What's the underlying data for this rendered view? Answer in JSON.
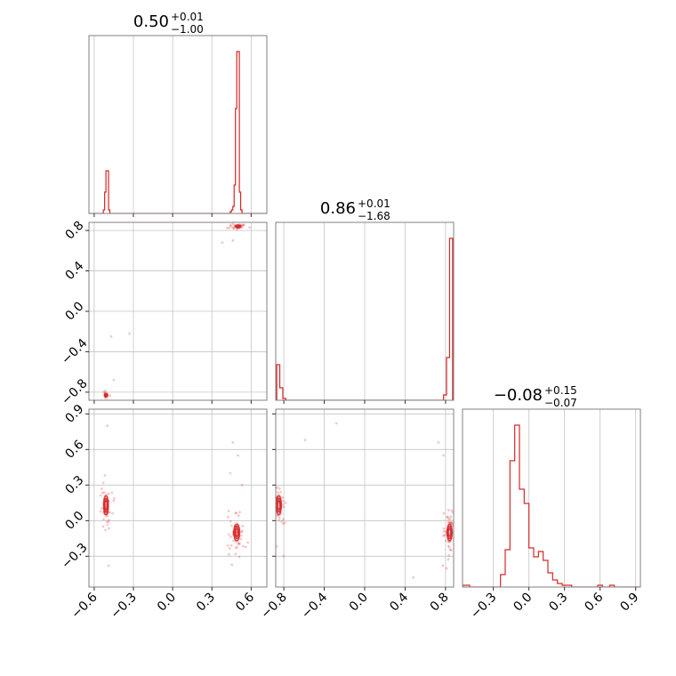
{
  "chart_data": {
    "type": "corner",
    "color": "#d62728",
    "grid": true,
    "titles": [
      {
        "value": "0.50",
        "plus": "+0.01",
        "minus": "−1.00"
      },
      {
        "value": "0.86",
        "plus": "+0.01",
        "minus": "−1.68"
      },
      {
        "value": "−0.08",
        "plus": "+0.15",
        "minus": "−0.07"
      }
    ],
    "axes": [
      {
        "range": [
          -0.64,
          0.72
        ],
        "ticks": [
          -0.6,
          -0.3,
          0.0,
          0.3,
          0.6
        ],
        "tick_labels": [
          "−0.6",
          "−0.3",
          "0.0",
          "0.3",
          "0.6"
        ]
      },
      {
        "range": [
          -0.88,
          0.88
        ],
        "ticks": [
          -0.8,
          -0.4,
          0.0,
          0.4,
          0.8
        ],
        "tick_labels": [
          "−0.8",
          "−0.4",
          "0.0",
          "0.4",
          "0.8"
        ]
      },
      {
        "range": [
          -0.56,
          0.94
        ],
        "ticks": [
          -0.3,
          0.0,
          0.3,
          0.6,
          0.9
        ],
        "tick_labels": [
          "−0.3",
          "0.0",
          "0.3",
          "0.6",
          "0.9"
        ]
      }
    ],
    "histograms": [
      {
        "param": 0,
        "bins": [
          [
            -0.53,
            -0.52,
            0.02
          ],
          [
            -0.52,
            -0.51,
            0.12
          ],
          [
            -0.51,
            -0.5,
            0.24
          ],
          [
            -0.5,
            -0.49,
            0.24
          ],
          [
            -0.49,
            -0.48,
            0.02
          ],
          [
            0.44,
            0.45,
            0.01
          ],
          [
            0.45,
            0.46,
            0.02
          ],
          [
            0.46,
            0.47,
            0.04
          ],
          [
            0.47,
            0.48,
            0.16
          ],
          [
            0.48,
            0.49,
            0.59
          ],
          [
            0.49,
            0.5,
            0.91
          ],
          [
            0.5,
            0.51,
            0.91
          ],
          [
            0.51,
            0.52,
            0.12
          ],
          [
            0.52,
            0.53,
            0.02
          ]
        ]
      },
      {
        "param": 1,
        "bins": [
          [
            -0.87,
            -0.84,
            0.2
          ],
          [
            -0.84,
            -0.81,
            0.07
          ],
          [
            -0.81,
            -0.78,
            0.01
          ],
          [
            0.78,
            0.81,
            0.03
          ],
          [
            0.81,
            0.84,
            0.24
          ],
          [
            0.84,
            0.87,
            0.91
          ]
        ]
      },
      {
        "param": 2,
        "bins": [
          [
            -0.56,
            -0.5,
            0.01
          ],
          [
            -0.24,
            -0.2,
            0.07
          ],
          [
            -0.2,
            -0.16,
            0.21
          ],
          [
            -0.16,
            -0.12,
            0.71
          ],
          [
            -0.12,
            -0.08,
            0.91
          ],
          [
            -0.08,
            -0.04,
            0.55
          ],
          [
            -0.04,
            0.0,
            0.47
          ],
          [
            0.0,
            0.04,
            0.22
          ],
          [
            0.04,
            0.08,
            0.17
          ],
          [
            0.08,
            0.12,
            0.2
          ],
          [
            0.12,
            0.16,
            0.15
          ],
          [
            0.16,
            0.2,
            0.08
          ],
          [
            0.2,
            0.24,
            0.04
          ],
          [
            0.24,
            0.28,
            0.02
          ],
          [
            0.28,
            0.36,
            0.01
          ],
          [
            0.58,
            0.62,
            0.01
          ],
          [
            0.68,
            0.72,
            0.01
          ]
        ]
      }
    ],
    "scatter_2d": [
      {
        "x_param": 0,
        "y_param": 1,
        "clusters": [
          {
            "cx": 0.5,
            "cy": 0.84,
            "rx": 0.022,
            "ry": 0.012,
            "n": 30
          },
          {
            "cx": -0.51,
            "cy": -0.83,
            "rx": 0.012,
            "ry": 0.015,
            "n": 20
          }
        ],
        "outliers": [
          [
            -0.47,
            -0.25
          ],
          [
            -0.33,
            -0.22
          ],
          [
            0.46,
            0.7
          ],
          [
            0.38,
            0.68
          ],
          [
            -0.45,
            -0.68
          ]
        ]
      },
      {
        "x_param": 0,
        "y_param": 2,
        "clusters": [
          {
            "cx": -0.51,
            "cy": 0.13,
            "rx": 0.018,
            "ry": 0.08,
            "n": 40
          },
          {
            "cx": 0.49,
            "cy": -0.1,
            "rx": 0.022,
            "ry": 0.07,
            "n": 50
          }
        ],
        "outliers": [
          [
            -0.5,
            0.8
          ],
          [
            -0.49,
            -0.38
          ],
          [
            0.46,
            0.66
          ],
          [
            0.5,
            0.55
          ],
          [
            0.44,
            0.4
          ],
          [
            0.53,
            0.3
          ]
        ]
      },
      {
        "x_param": 1,
        "y_param": 2,
        "clusters": [
          {
            "cx": -0.85,
            "cy": 0.13,
            "rx": 0.025,
            "ry": 0.08,
            "n": 40
          },
          {
            "cx": 0.84,
            "cy": -0.1,
            "rx": 0.025,
            "ry": 0.07,
            "n": 50
          }
        ],
        "outliers": [
          [
            -0.28,
            0.82
          ],
          [
            -0.59,
            0.68
          ],
          [
            0.73,
            0.66
          ],
          [
            0.78,
            0.55
          ],
          [
            -0.8,
            -0.3
          ],
          [
            0.48,
            -0.48
          ]
        ]
      }
    ]
  }
}
